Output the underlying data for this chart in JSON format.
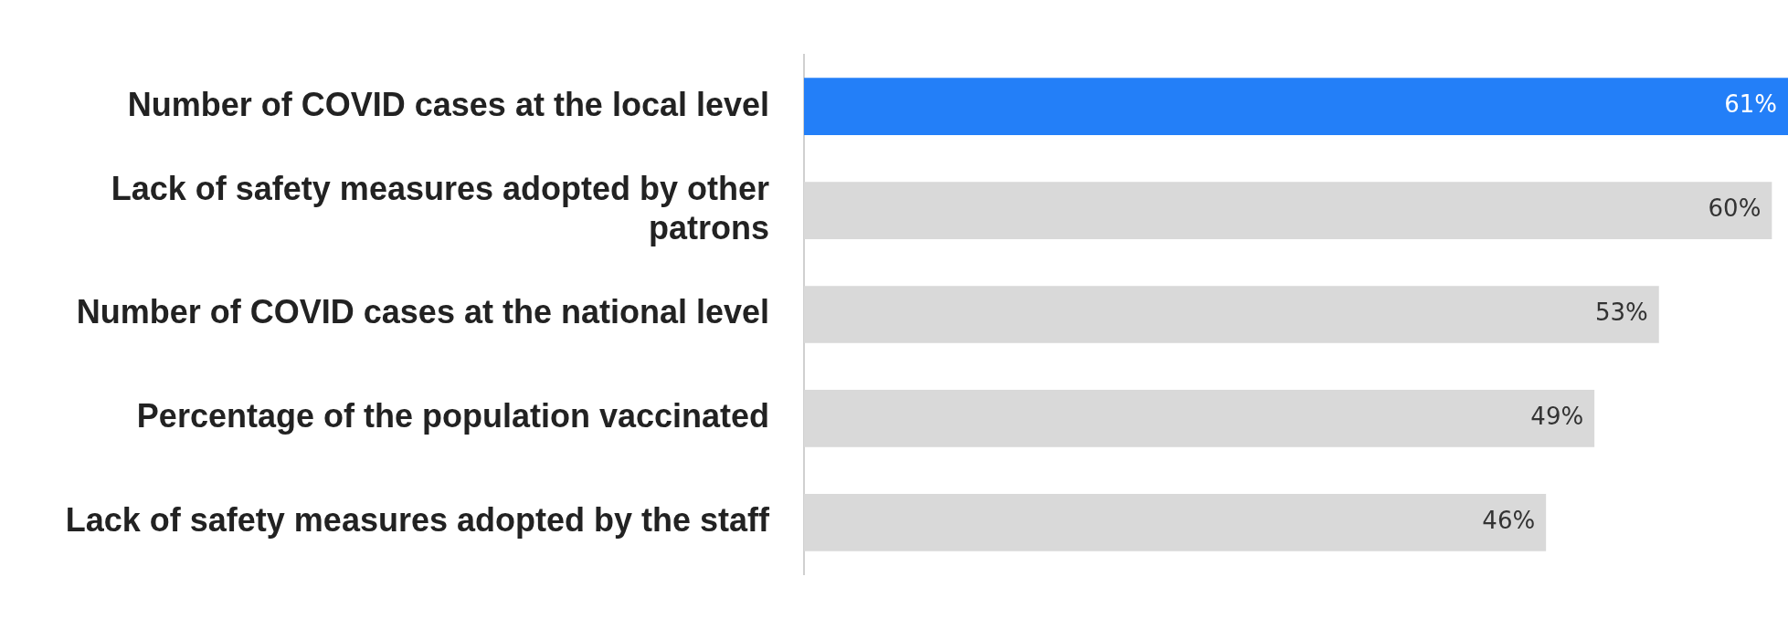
{
  "chart_data": {
    "type": "bar",
    "orientation": "horizontal",
    "categories": [
      "Number of COVID cases at the local level",
      "Lack of safety measures adopted by other patrons",
      "Number of COVID cases at the national level",
      "Percentage of the population vaccinated",
      "Lack of safety measures adopted by the staff"
    ],
    "values": [
      61,
      60,
      53,
      49,
      46
    ],
    "colors": [
      "#237ff8",
      "#d9d9d9",
      "#d9d9d9",
      "#d9d9d9",
      "#d9d9d9"
    ],
    "value_labels": [
      "61%",
      "60%",
      "53%",
      "49%",
      "46%"
    ],
    "legend": false
  }
}
